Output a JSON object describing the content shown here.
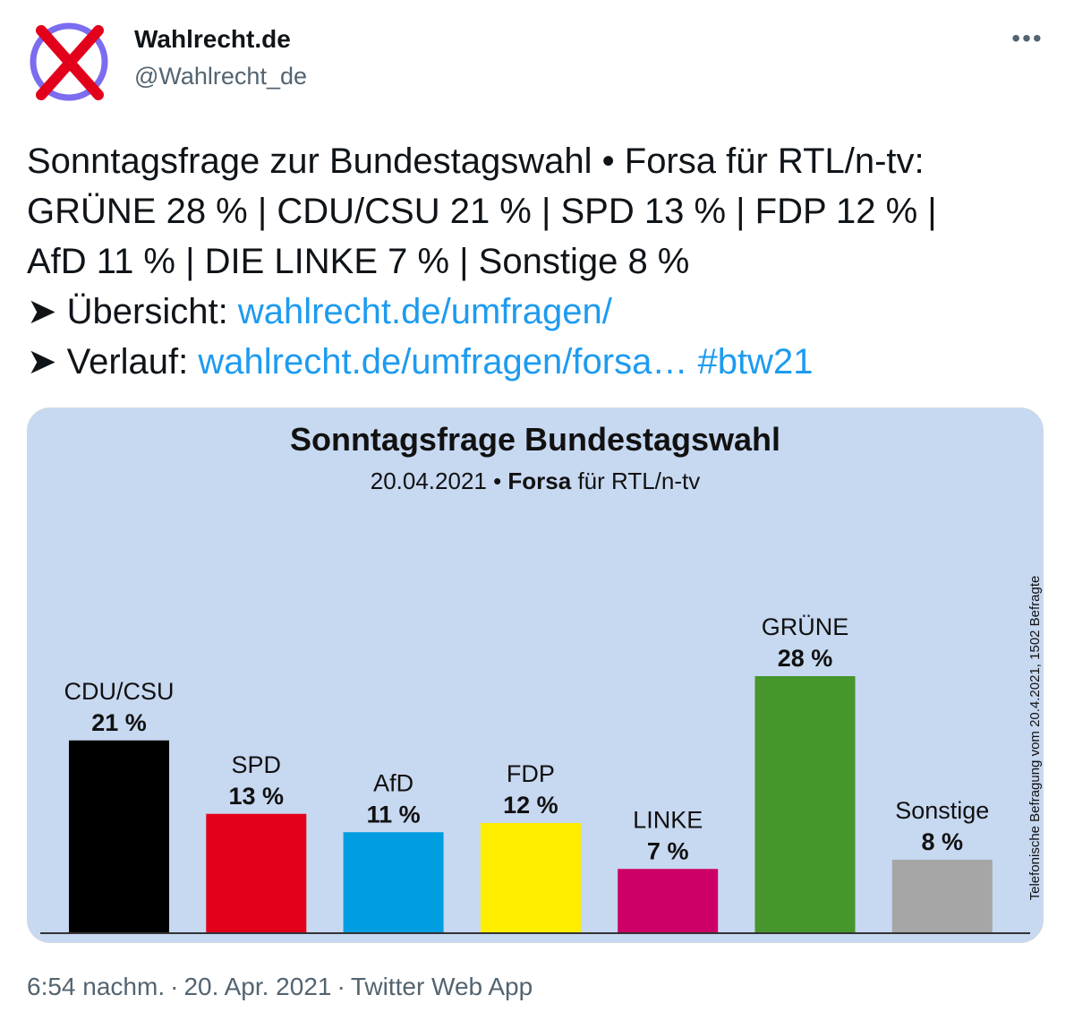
{
  "account": {
    "name": "Wahlrecht.de",
    "handle": "@Wahlrecht_de",
    "avatar_icon": "x-cross-avatar-icon",
    "more_icon": "more-options-icon",
    "more_label": "•••"
  },
  "tweet": {
    "line1": "Sonntagsfrage zur Bundestagswahl • Forsa für RTL/n-tv:",
    "line2": "GRÜNE 28 % | CDU/CSU 21 % | SPD 13 % | FDP 12 % |",
    "line3": "AfD 11 % | DIE LINKE 7 % | Sonstige 8 %",
    "line4_prefix": "➤ Übersicht: ",
    "line4_link": "wahlrecht.de/umfragen/",
    "line5_prefix": "➤ Verlauf: ",
    "line5_link": "wahlrecht.de/umfragen/forsa…",
    "line5_hashtag": "#btw21"
  },
  "chart_data": {
    "type": "bar",
    "title": "Sonntagsfrage Bundestagswahl",
    "subtitle_date": "20.04.2021 • ",
    "subtitle_institute": "Forsa",
    "subtitle_client": " für RTL/n-tv",
    "side_note": "Telefonische Befragung vom 20.4.2021, 1502 Befragte",
    "categories": [
      "CDU/CSU",
      "SPD",
      "AfD",
      "FDP",
      "LINKE",
      "GRÜNE",
      "Sonstige"
    ],
    "values": [
      21,
      13,
      11,
      12,
      7,
      28,
      8
    ],
    "value_labels": [
      "21 %",
      "13 %",
      "11 %",
      "12 %",
      "7 %",
      "28 %",
      "8 %"
    ],
    "colors": [
      "#000000",
      "#e3001b",
      "#009ee0",
      "#ffed00",
      "#cc0066",
      "#46962b",
      "#a6a6a6"
    ],
    "ylim": [
      0,
      40
    ],
    "background": "#c7d8f1",
    "grid": false,
    "legend": "none"
  },
  "footer": {
    "time": "6:54 nachm.",
    "separator": "·",
    "date": "20. Apr. 2021",
    "source": "Twitter Web App"
  }
}
